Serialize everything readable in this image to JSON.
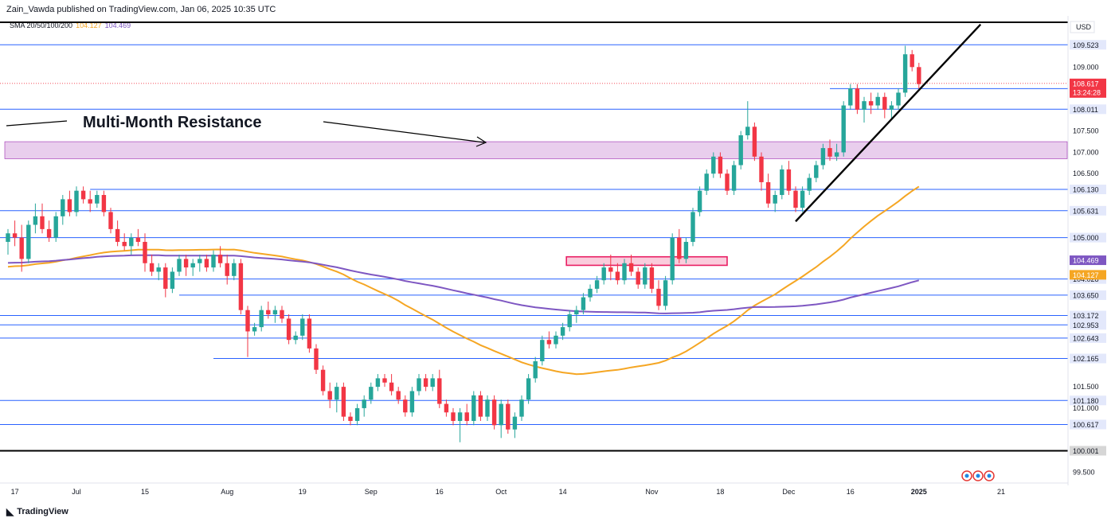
{
  "header": {
    "published": "Zain_Vawda published on TradingView.com, Jan 06, 2025 10:35 UTC"
  },
  "legend": {
    "label": "SMA 20/50/100/200",
    "sma_a": "104.127",
    "sma_b": "104.469"
  },
  "footer": {
    "brand": "TradingView"
  },
  "colors": {
    "up": "#26a69a",
    "down": "#f23645",
    "sma_orange": "#f5a623",
    "sma_purple": "#7e57c2",
    "level": "#2962ff",
    "zone": "#e1bee7",
    "zone2": "#f8bbd0"
  },
  "chart_data": {
    "type": "candlestick",
    "currency": "USD",
    "ylim": [
      99.3,
      110.2
    ],
    "y_ticks": [
      "109.000",
      "107.500",
      "107.000",
      "106.500",
      "101.500",
      "101.000",
      "99.500"
    ],
    "x_ticks": [
      {
        "label": "17",
        "i": 1
      },
      {
        "label": "Jul",
        "i": 10
      },
      {
        "label": "15",
        "i": 20
      },
      {
        "label": "Aug",
        "i": 32
      },
      {
        "label": "19",
        "i": 43
      },
      {
        "label": "Sep",
        "i": 53
      },
      {
        "label": "16",
        "i": 63
      },
      {
        "label": "Oct",
        "i": 72
      },
      {
        "label": "14",
        "i": 81
      },
      {
        "label": "Nov",
        "i": 94
      },
      {
        "label": "18",
        "i": 104
      },
      {
        "label": "Dec",
        "i": 114
      },
      {
        "label": "16",
        "i": 123
      },
      {
        "label": "2025",
        "i": 133
      },
      {
        "label": "21",
        "i": 145
      }
    ],
    "levels": [
      {
        "value": 109.523,
        "label": "109.523",
        "from": 0
      },
      {
        "value": 108.495,
        "label": "108.495",
        "from": 120
      },
      {
        "value": 108.011,
        "label": "108.011",
        "from": 0
      },
      {
        "value": 106.13,
        "label": "106.130",
        "from": 12
      },
      {
        "value": 105.631,
        "label": "105.631",
        "from": 0
      },
      {
        "value": 105.0,
        "label": "105.000",
        "from": 0
      },
      {
        "value": 104.028,
        "label": "104.028",
        "from": 0
      },
      {
        "value": 103.65,
        "label": "103.650",
        "from": 25
      },
      {
        "value": 103.172,
        "label": "103.172",
        "from": 0
      },
      {
        "value": 102.953,
        "label": "102.953",
        "from": 0
      },
      {
        "value": 102.643,
        "label": "102.643",
        "from": 0
      },
      {
        "value": 102.165,
        "label": "102.165",
        "from": 30
      },
      {
        "value": 101.18,
        "label": "101.180",
        "from": 0
      },
      {
        "value": 100.617,
        "label": "100.617",
        "from": 0
      }
    ],
    "bold_levels": [
      {
        "value": 110.05,
        "label": ""
      },
      {
        "value": 100.001,
        "label": "100.001"
      }
    ],
    "last_price": {
      "value": 108.617,
      "label": "108.617",
      "countdown": "13:24:28"
    },
    "sma_tags": [
      {
        "value": 104.469,
        "label": "104.469",
        "color": "#7e57c2"
      },
      {
        "value": 104.127,
        "label": "104.127",
        "color": "#f5a623"
      }
    ],
    "zones": [
      {
        "from": 0,
        "to": "end",
        "top": 107.25,
        "bottom": 106.85,
        "color": "#e1bee7"
      },
      {
        "from": 82,
        "to": 105,
        "top": 104.55,
        "bottom": 104.35,
        "color": "#f8bbd0"
      }
    ],
    "annotation": {
      "text": "Multi-Month Resistance"
    },
    "trendline": {
      "i0": 115,
      "v0": 105.38,
      "i1": 142,
      "v1": 110.0
    },
    "candles": [
      [
        104.9,
        105.2,
        104.6,
        105.1
      ],
      [
        105.1,
        105.4,
        104.8,
        105.0
      ],
      [
        105.0,
        105.3,
        104.2,
        104.5
      ],
      [
        104.5,
        105.4,
        104.4,
        105.3
      ],
      [
        105.3,
        105.8,
        105.1,
        105.5
      ],
      [
        105.5,
        105.8,
        105.1,
        105.2
      ],
      [
        105.2,
        105.4,
        104.9,
        105.0
      ],
      [
        105.0,
        105.6,
        104.9,
        105.5
      ],
      [
        105.5,
        106.0,
        105.3,
        105.9
      ],
      [
        105.9,
        106.1,
        105.5,
        105.6
      ],
      [
        105.6,
        106.2,
        105.5,
        106.1
      ],
      [
        106.1,
        106.2,
        105.8,
        105.9
      ],
      [
        105.9,
        106.1,
        105.6,
        105.8
      ],
      [
        105.8,
        106.1,
        105.7,
        106.0
      ],
      [
        106.0,
        106.1,
        105.5,
        105.6
      ],
      [
        105.6,
        105.7,
        105.1,
        105.2
      ],
      [
        105.2,
        105.4,
        104.8,
        104.9
      ],
      [
        104.9,
        105.1,
        104.7,
        104.8
      ],
      [
        104.8,
        105.1,
        104.6,
        105.0
      ],
      [
        105.0,
        105.2,
        104.8,
        104.9
      ],
      [
        104.9,
        105.1,
        104.2,
        104.4
      ],
      [
        104.4,
        104.6,
        104.1,
        104.2
      ],
      [
        104.2,
        104.4,
        104.0,
        104.3
      ],
      [
        104.3,
        104.4,
        103.6,
        103.8
      ],
      [
        103.8,
        104.3,
        103.7,
        104.2
      ],
      [
        104.2,
        104.6,
        104.1,
        104.5
      ],
      [
        104.5,
        104.6,
        104.1,
        104.3
      ],
      [
        104.3,
        104.5,
        104.1,
        104.4
      ],
      [
        104.4,
        104.6,
        104.2,
        104.5
      ],
      [
        104.5,
        104.6,
        104.2,
        104.3
      ],
      [
        104.3,
        104.7,
        104.2,
        104.6
      ],
      [
        104.6,
        104.8,
        104.3,
        104.4
      ],
      [
        104.4,
        104.6,
        103.9,
        104.1
      ],
      [
        104.1,
        104.5,
        104.0,
        104.4
      ],
      [
        104.4,
        104.5,
        103.2,
        103.3
      ],
      [
        103.3,
        103.4,
        102.2,
        102.8
      ],
      [
        102.8,
        103.0,
        102.7,
        102.9
      ],
      [
        102.9,
        103.4,
        102.8,
        103.3
      ],
      [
        103.3,
        103.5,
        103.1,
        103.2
      ],
      [
        103.2,
        103.4,
        103.0,
        103.3
      ],
      [
        103.3,
        103.4,
        103.0,
        103.1
      ],
      [
        103.1,
        103.2,
        102.5,
        102.6
      ],
      [
        102.6,
        102.8,
        102.5,
        102.7
      ],
      [
        102.7,
        103.2,
        102.6,
        103.1
      ],
      [
        103.1,
        103.2,
        102.3,
        102.4
      ],
      [
        102.4,
        102.5,
        101.8,
        101.9
      ],
      [
        101.9,
        102.0,
        101.3,
        101.4
      ],
      [
        101.4,
        101.6,
        101.0,
        101.2
      ],
      [
        101.2,
        101.6,
        100.9,
        101.5
      ],
      [
        101.5,
        101.6,
        100.7,
        100.8
      ],
      [
        100.8,
        100.9,
        100.6,
        100.7
      ],
      [
        100.7,
        101.1,
        100.6,
        101.0
      ],
      [
        101.0,
        101.3,
        100.8,
        101.2
      ],
      [
        101.2,
        101.6,
        101.1,
        101.5
      ],
      [
        101.5,
        101.8,
        101.4,
        101.7
      ],
      [
        101.7,
        101.8,
        101.5,
        101.6
      ],
      [
        101.6,
        101.8,
        101.3,
        101.4
      ],
      [
        101.4,
        101.5,
        101.1,
        101.2
      ],
      [
        101.2,
        101.3,
        100.8,
        100.9
      ],
      [
        100.9,
        101.5,
        100.8,
        101.4
      ],
      [
        101.4,
        101.8,
        101.3,
        101.7
      ],
      [
        101.7,
        101.8,
        101.4,
        101.5
      ],
      [
        101.5,
        101.8,
        101.4,
        101.7
      ],
      [
        101.7,
        101.9,
        101.0,
        101.1
      ],
      [
        101.1,
        101.2,
        100.8,
        100.9
      ],
      [
        100.9,
        101.0,
        100.6,
        100.7
      ],
      [
        100.7,
        101.0,
        100.2,
        100.9
      ],
      [
        100.9,
        101.1,
        100.6,
        100.7
      ],
      [
        100.7,
        101.4,
        100.6,
        101.3
      ],
      [
        101.3,
        101.4,
        100.7,
        100.8
      ],
      [
        100.8,
        101.3,
        100.7,
        101.2
      ],
      [
        101.2,
        101.3,
        100.5,
        100.6
      ],
      [
        100.6,
        101.2,
        100.3,
        101.1
      ],
      [
        101.1,
        101.2,
        100.4,
        100.5
      ],
      [
        100.5,
        100.9,
        100.3,
        100.8
      ],
      [
        100.8,
        101.3,
        100.7,
        101.2
      ],
      [
        101.2,
        101.8,
        101.1,
        101.7
      ],
      [
        101.7,
        102.2,
        101.6,
        102.1
      ],
      [
        102.1,
        102.7,
        102.0,
        102.6
      ],
      [
        102.6,
        102.8,
        102.4,
        102.5
      ],
      [
        102.5,
        102.8,
        102.4,
        102.7
      ],
      [
        102.7,
        103.0,
        102.6,
        102.9
      ],
      [
        102.9,
        103.3,
        102.8,
        103.2
      ],
      [
        103.2,
        103.4,
        103.0,
        103.3
      ],
      [
        103.3,
        103.7,
        103.2,
        103.6
      ],
      [
        103.6,
        103.9,
        103.5,
        103.8
      ],
      [
        103.8,
        104.1,
        103.7,
        104.0
      ],
      [
        104.0,
        104.4,
        103.9,
        104.3
      ],
      [
        104.3,
        104.6,
        104.0,
        104.2
      ],
      [
        104.2,
        104.4,
        103.9,
        104.0
      ],
      [
        104.0,
        104.5,
        103.9,
        104.4
      ],
      [
        104.4,
        104.6,
        104.1,
        104.2
      ],
      [
        104.2,
        104.3,
        103.8,
        103.9
      ],
      [
        103.9,
        104.4,
        103.8,
        104.3
      ],
      [
        104.3,
        104.4,
        103.7,
        103.8
      ],
      [
        103.8,
        104.0,
        103.3,
        103.4
      ],
      [
        103.4,
        104.1,
        103.3,
        104.0
      ],
      [
        104.0,
        105.1,
        103.9,
        105.0
      ],
      [
        105.0,
        105.2,
        104.4,
        104.5
      ],
      [
        104.5,
        105.0,
        104.4,
        104.9
      ],
      [
        104.9,
        105.7,
        104.8,
        105.6
      ],
      [
        105.6,
        106.2,
        105.5,
        106.1
      ],
      [
        106.1,
        106.6,
        106.0,
        106.5
      ],
      [
        106.5,
        107.0,
        106.4,
        106.9
      ],
      [
        106.9,
        107.0,
        106.4,
        106.5
      ],
      [
        106.5,
        106.6,
        106.0,
        106.1
      ],
      [
        106.1,
        106.8,
        106.0,
        106.7
      ],
      [
        106.7,
        107.5,
        106.6,
        107.4
      ],
      [
        107.4,
        108.2,
        107.3,
        107.6
      ],
      [
        107.6,
        107.7,
        106.8,
        106.9
      ],
      [
        106.9,
        107.0,
        106.1,
        106.3
      ],
      [
        106.3,
        106.5,
        105.7,
        105.8
      ],
      [
        105.8,
        106.1,
        105.6,
        106.0
      ],
      [
        106.0,
        106.7,
        105.9,
        106.6
      ],
      [
        106.6,
        106.8,
        106.0,
        106.1
      ],
      [
        106.1,
        106.2,
        105.6,
        105.7
      ],
      [
        105.7,
        106.2,
        105.6,
        106.1
      ],
      [
        106.1,
        106.5,
        106.0,
        106.4
      ],
      [
        106.4,
        106.8,
        106.3,
        106.7
      ],
      [
        106.7,
        107.2,
        106.6,
        107.1
      ],
      [
        107.1,
        107.3,
        106.8,
        106.9
      ],
      [
        106.9,
        107.2,
        106.8,
        107.0
      ],
      [
        107.0,
        108.2,
        106.9,
        108.1
      ],
      [
        108.1,
        108.6,
        108.0,
        108.5
      ],
      [
        108.5,
        108.6,
        107.9,
        108.0
      ],
      [
        108.0,
        108.3,
        107.7,
        108.2
      ],
      [
        108.2,
        108.4,
        107.9,
        108.1
      ],
      [
        108.1,
        108.4,
        108.0,
        108.3
      ],
      [
        108.3,
        108.4,
        107.8,
        108.0
      ],
      [
        108.0,
        108.2,
        107.8,
        108.1
      ],
      [
        108.1,
        108.5,
        108.0,
        108.4
      ],
      [
        108.4,
        109.5,
        108.3,
        109.3
      ],
      [
        109.3,
        109.4,
        108.9,
        109.0
      ],
      [
        109.0,
        109.1,
        108.5,
        108.6
      ]
    ]
  }
}
